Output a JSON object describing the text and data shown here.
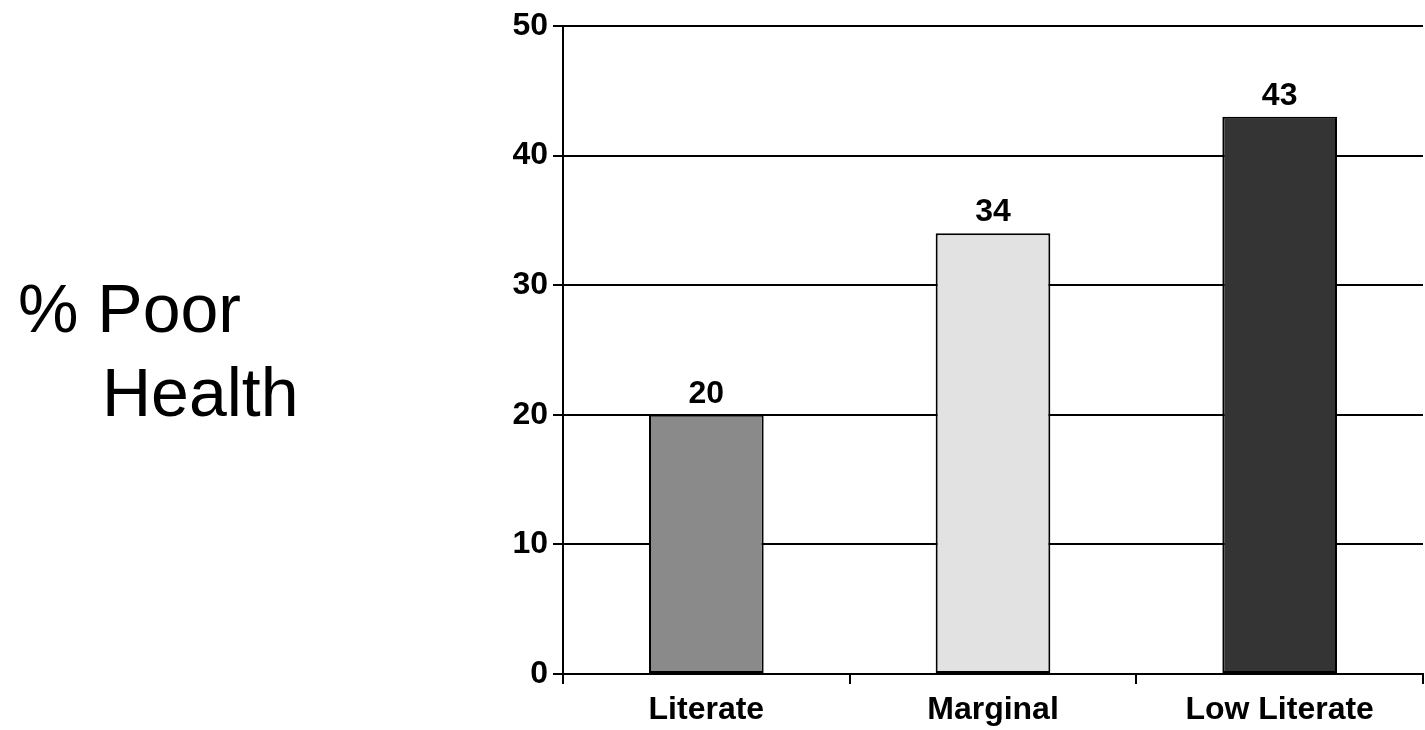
{
  "chart_data": {
    "type": "bar",
    "ylabel": "% Poor Health",
    "categories": [
      "Literate",
      "Marginal",
      "Low Literate"
    ],
    "values": [
      20,
      34,
      43
    ],
    "colors": [
      "#8a8a8a",
      "#e2e2e2",
      "#343434"
    ],
    "ylim": [
      0,
      50
    ],
    "yticks": [
      0,
      10,
      20,
      30,
      40,
      50
    ],
    "grid": "y",
    "data_labels": true
  }
}
